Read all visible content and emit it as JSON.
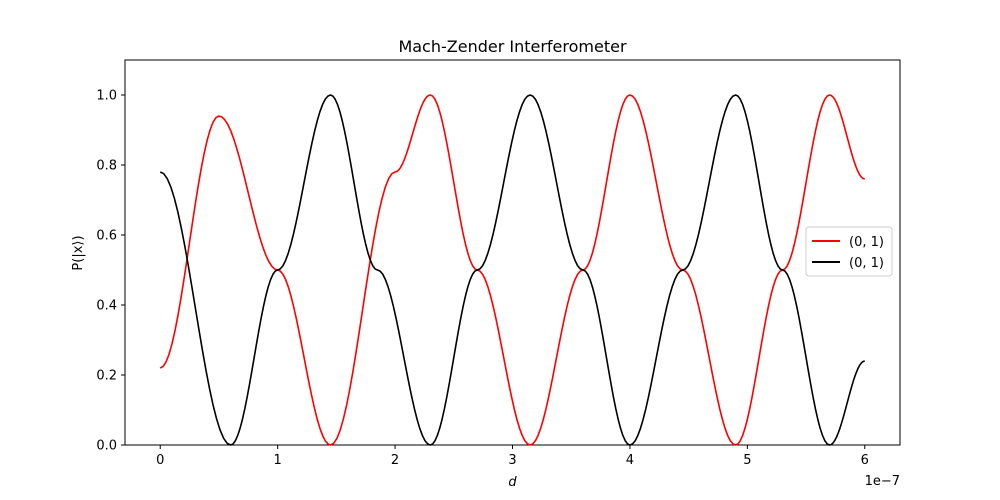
{
  "chart_data": {
    "type": "line",
    "title": "Mach-Zender Interferometer",
    "xlabel": "d",
    "ylabel": "P(|x⟩)",
    "x_offset_text": "1e−7",
    "x_scale": 1e-07,
    "xlim": [
      -3e-08,
      6.3e-07
    ],
    "ylim": [
      0.0,
      1.1
    ],
    "xticks": [
      0,
      1e-07,
      2e-07,
      3e-07,
      4e-07,
      5e-07,
      6e-07
    ],
    "xtick_labels": [
      "0",
      "1",
      "2",
      "3",
      "4",
      "5",
      "6"
    ],
    "yticks": [
      0.0,
      0.2,
      0.4,
      0.6,
      0.8,
      1.0
    ],
    "ytick_labels": [
      "0.0",
      "0.2",
      "0.4",
      "0.6",
      "0.8",
      "1.0"
    ],
    "grid": false,
    "legend_position": "center-right",
    "series": [
      {
        "name": "(0, 1)",
        "color": "#ff0000",
        "x": [
          0,
          5e-08,
          1e-07,
          1.45e-07,
          2e-07,
          2.3e-07,
          2.7e-07,
          3.15e-07,
          3.6e-07,
          4e-07,
          4.45e-07,
          4.9e-07,
          5.3e-07,
          5.7e-07,
          6e-07
        ],
        "y": [
          0.22,
          0.94,
          0.5,
          0.0,
          0.78,
          1.0,
          0.5,
          0.0,
          0.5,
          1.0,
          0.5,
          0.0,
          0.5,
          1.0,
          0.76
        ]
      },
      {
        "name": "(0, 1)",
        "color": "#000000",
        "x": [
          0,
          6e-08,
          1e-07,
          1.45e-07,
          1.85e-07,
          2.3e-07,
          2.7e-07,
          3.15e-07,
          3.6e-07,
          4e-07,
          4.45e-07,
          4.9e-07,
          5.3e-07,
          5.7e-07,
          6e-07
        ],
        "y": [
          0.78,
          0.0,
          0.5,
          1.0,
          0.5,
          0.0,
          0.5,
          1.0,
          0.5,
          0.0,
          0.5,
          1.0,
          0.5,
          0.0,
          0.24
        ]
      }
    ]
  }
}
